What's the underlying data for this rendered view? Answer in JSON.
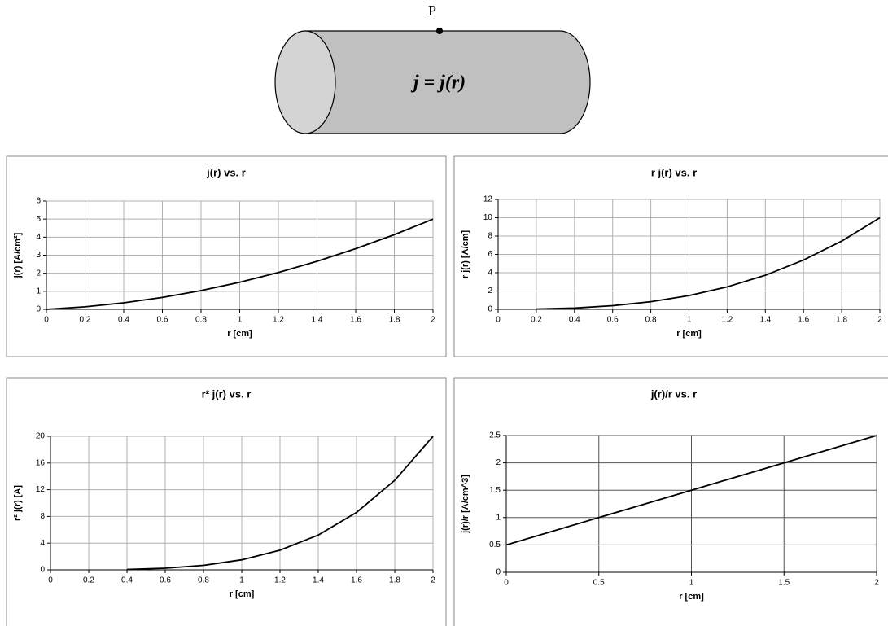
{
  "diagram": {
    "point_label": "P",
    "equation": "j = j(r)"
  },
  "chart_data": [
    {
      "type": "line",
      "title": "j(r) vs. r",
      "x_label": "r [cm]",
      "y_label": "j(r) [A/cm²]",
      "x": [
        0,
        0.2,
        0.4,
        0.6,
        0.8,
        1,
        1.2,
        1.4,
        1.6,
        1.8,
        2
      ],
      "values": [
        0,
        0.14,
        0.36,
        0.66,
        1.04,
        1.5,
        2.04,
        2.66,
        3.36,
        4.14,
        5
      ],
      "color": "#000000",
      "xlim": [
        0,
        2
      ],
      "ylim": [
        0,
        6
      ],
      "xticks": [
        0,
        0.2,
        0.4,
        0.6,
        0.8,
        1,
        1.2,
        1.4,
        1.6,
        1.8,
        2
      ],
      "yticks": [
        0,
        1,
        2,
        3,
        4,
        5,
        6
      ],
      "grid": true
    },
    {
      "type": "line",
      "title": "r j(r) vs. r",
      "x_label": "r [cm]",
      "y_label": "r j(r) [A/cm]",
      "x": [
        0.2,
        0.4,
        0.6,
        0.8,
        1,
        1.2,
        1.4,
        1.6,
        1.8,
        2
      ],
      "values": [
        0.03,
        0.14,
        0.4,
        0.83,
        1.5,
        2.45,
        3.72,
        5.38,
        7.45,
        10
      ],
      "color": "#000000",
      "xlim": [
        0,
        2
      ],
      "ylim": [
        0,
        12
      ],
      "xticks": [
        0,
        0.2,
        0.4,
        0.6,
        0.8,
        1,
        1.2,
        1.4,
        1.6,
        1.8,
        2
      ],
      "yticks": [
        0,
        2,
        4,
        6,
        8,
        10,
        12
      ],
      "grid": true
    },
    {
      "type": "line",
      "title": "r² j(r) vs. r",
      "x_label": "r [cm]",
      "y_label": "r² j(r) [A]",
      "x": [
        0.4,
        0.6,
        0.8,
        1,
        1.2,
        1.4,
        1.6,
        1.8,
        2
      ],
      "values": [
        0.06,
        0.24,
        0.67,
        1.5,
        2.94,
        5.21,
        8.6,
        13.41,
        20
      ],
      "color": "#000000",
      "xlim": [
        0,
        2
      ],
      "ylim": [
        0,
        20
      ],
      "xticks": [
        0,
        0.2,
        0.4,
        0.6,
        0.8,
        1,
        1.2,
        1.4,
        1.6,
        1.8,
        2
      ],
      "yticks": [
        0,
        4,
        8,
        12,
        16,
        20
      ],
      "grid": true
    },
    {
      "type": "line",
      "title": "j(r)/r vs. r",
      "x_label": "r [cm]",
      "y_label": "j(r)/r [A/cm^3]",
      "x": [
        0,
        0.5,
        1,
        1.5,
        2
      ],
      "values": [
        0.5,
        1,
        1.5,
        2,
        2.5
      ],
      "color": "#000000",
      "xlim": [
        0,
        2
      ],
      "ylim": [
        0,
        2.5
      ],
      "xticks": [
        0,
        0.5,
        1,
        1.5,
        2
      ],
      "yticks": [
        0,
        0.5,
        1,
        1.5,
        2,
        2.5
      ],
      "grid": true
    }
  ]
}
